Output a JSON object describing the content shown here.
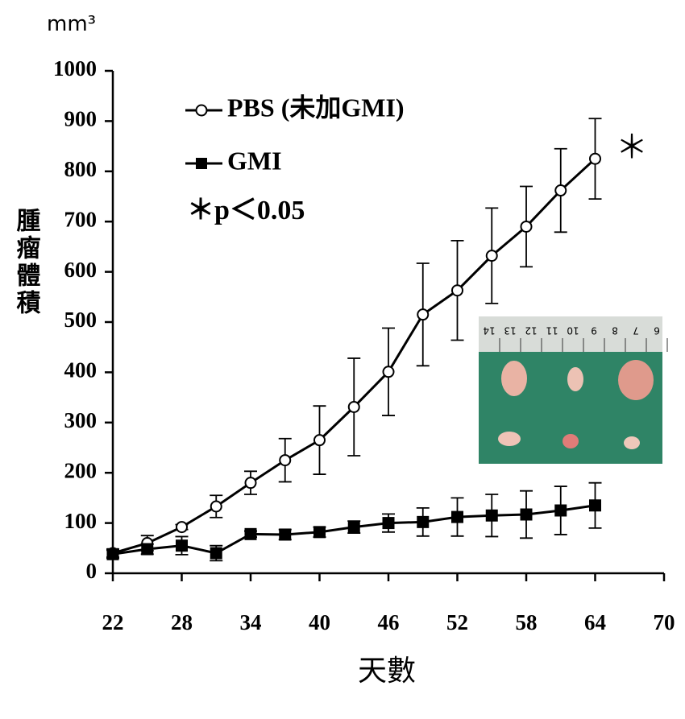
{
  "chart_data": {
    "type": "line",
    "y_unit": "mm³",
    "ylabel": "腫瘤體積",
    "xlabel": "天數",
    "annotation": "＊p＜0.05",
    "end_marker": "＊",
    "inset_ruler": [
      "14",
      "13",
      "12",
      "11",
      "10",
      "9",
      "8",
      "7",
      "6"
    ],
    "xlim": [
      22,
      70
    ],
    "xticks": [
      22,
      28,
      34,
      40,
      46,
      52,
      58,
      64,
      70
    ],
    "ylim": [
      0,
      1000
    ],
    "yticks": [
      0,
      100,
      200,
      300,
      400,
      500,
      600,
      700,
      800,
      900,
      1000
    ],
    "series": [
      {
        "name": "PBS (未加GMI)",
        "color": "#000000",
        "marker": "open-circle",
        "x": [
          22,
          25,
          28,
          31,
          34,
          37,
          40,
          43,
          46,
          49,
          52,
          55,
          58,
          61,
          64
        ],
        "values": [
          40,
          60,
          92,
          133,
          180,
          225,
          265,
          331,
          401,
          515,
          563,
          632,
          690,
          762,
          825
        ],
        "errors": [
          8,
          15,
          5,
          22,
          23,
          43,
          68,
          97,
          87,
          102,
          99,
          95,
          80,
          83,
          80
        ]
      },
      {
        "name": "GMI",
        "color": "#000000",
        "marker": "filled-square",
        "x": [
          22,
          25,
          28,
          31,
          34,
          37,
          40,
          43,
          46,
          49,
          52,
          55,
          58,
          61,
          64
        ],
        "values": [
          38,
          48,
          55,
          40,
          78,
          77,
          82,
          92,
          100,
          102,
          112,
          115,
          117,
          125,
          135
        ],
        "errors": [
          8,
          10,
          18,
          15,
          6,
          10,
          10,
          12,
          18,
          28,
          38,
          42,
          47,
          48,
          45
        ]
      }
    ]
  }
}
